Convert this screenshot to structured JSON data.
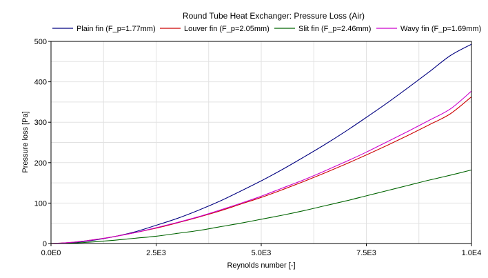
{
  "chart_data": {
    "type": "line",
    "title": "Round Tube Heat Exchanger: Pressure Loss (Air)",
    "xlabel": "Reynolds number [-]",
    "ylabel": "Pressure loss [Pa]",
    "xlim": [
      0,
      10000
    ],
    "ylim": [
      0,
      500
    ],
    "xticks": [
      0,
      2500,
      5000,
      7500,
      10000
    ],
    "xtick_labels": [
      "0.0E0",
      "2.5E3",
      "5.0E3",
      "7.5E3",
      "1.0E4"
    ],
    "yticks": [
      0,
      100,
      200,
      300,
      400,
      500
    ],
    "ytick_labels": [
      "0",
      "100",
      "200",
      "300",
      "400",
      "500"
    ],
    "grid": true,
    "legend_position": "top",
    "x": [
      0,
      500,
      1000,
      1500,
      2000,
      2500,
      3000,
      3500,
      4000,
      4500,
      5000,
      5500,
      6000,
      6500,
      7000,
      7500,
      8000,
      8500,
      9000,
      9500,
      10000
    ],
    "series": [
      {
        "name": "Plain fin (F_p=1.77mm)",
        "color": "#000080",
        "values": [
          0,
          2,
          8,
          17,
          29,
          45,
          62,
          82,
          104,
          129,
          155,
          183,
          213,
          244,
          277,
          312,
          348,
          386,
          425,
          465,
          493
        ]
      },
      {
        "name": "Louver fin (F_p=2.05mm)",
        "color": "#cc0000",
        "values": [
          0,
          3,
          9,
          17,
          27,
          38,
          51,
          65,
          80,
          97,
          114,
          133,
          153,
          174,
          196,
          219,
          243,
          268,
          294,
          321,
          363
        ]
      },
      {
        "name": "Slit fin (F_p=2.46mm)",
        "color": "#006400",
        "values": [
          0,
          1,
          4,
          8,
          13,
          18,
          25,
          32,
          41,
          50,
          60,
          70,
          81,
          93,
          105,
          118,
          131,
          144,
          157,
          169,
          182
        ]
      },
      {
        "name": "Wavy fin (F_p=1.69mm)",
        "color": "#cc00cc",
        "values": [
          0,
          3,
          9,
          17,
          27,
          39,
          52,
          66,
          82,
          99,
          117,
          137,
          157,
          179,
          202,
          226,
          252,
          278,
          305,
          333,
          377
        ]
      }
    ]
  }
}
